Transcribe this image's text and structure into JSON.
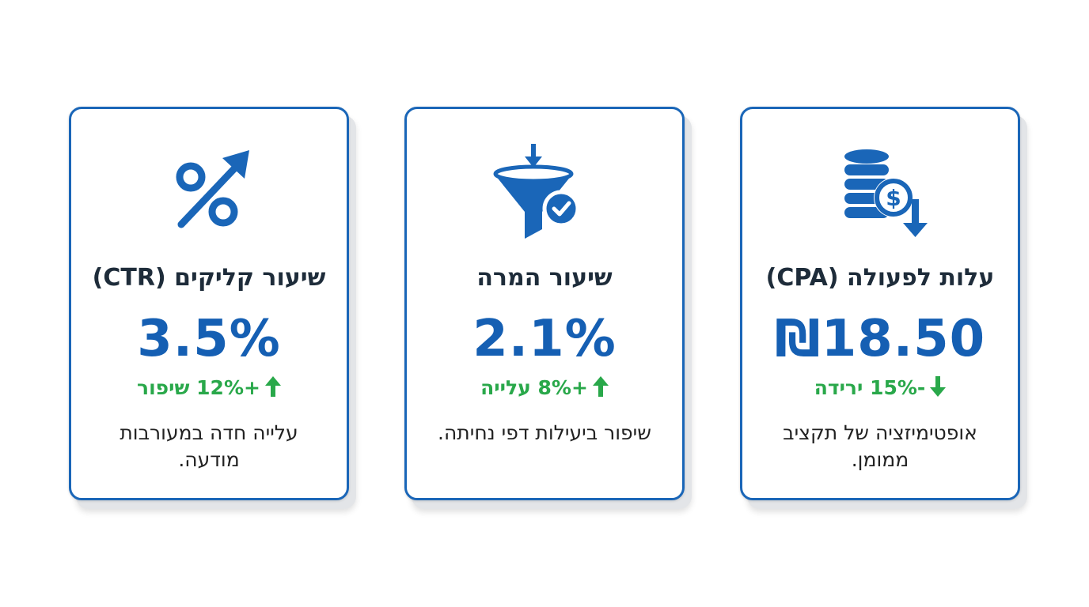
{
  "cards": [
    {
      "icon": "percent-up-arrow-icon",
      "title": "שיעור קליקים (CTR)",
      "value": "3.5%",
      "change": "+12% שיפור",
      "change_direction": "up",
      "description": "עלייה חדה במעורבות מודעה."
    },
    {
      "icon": "funnel-check-icon",
      "title": "שיעור המרה",
      "value": "2.1%",
      "change": "+8% עלייה",
      "change_direction": "up",
      "description": "שיפור ביעילות דפי נחיתה."
    },
    {
      "icon": "coins-dollar-down-icon",
      "title": "עלות לפעולה (CPA)",
      "value": "₪18.50",
      "change": "-15% ירידה",
      "change_direction": "down",
      "description": "אופטימיזציה של תקציב ממומן."
    }
  ],
  "colors": {
    "accent_blue": "#1a66b8",
    "value_blue": "#155fb3",
    "positive_green": "#29a84a"
  }
}
